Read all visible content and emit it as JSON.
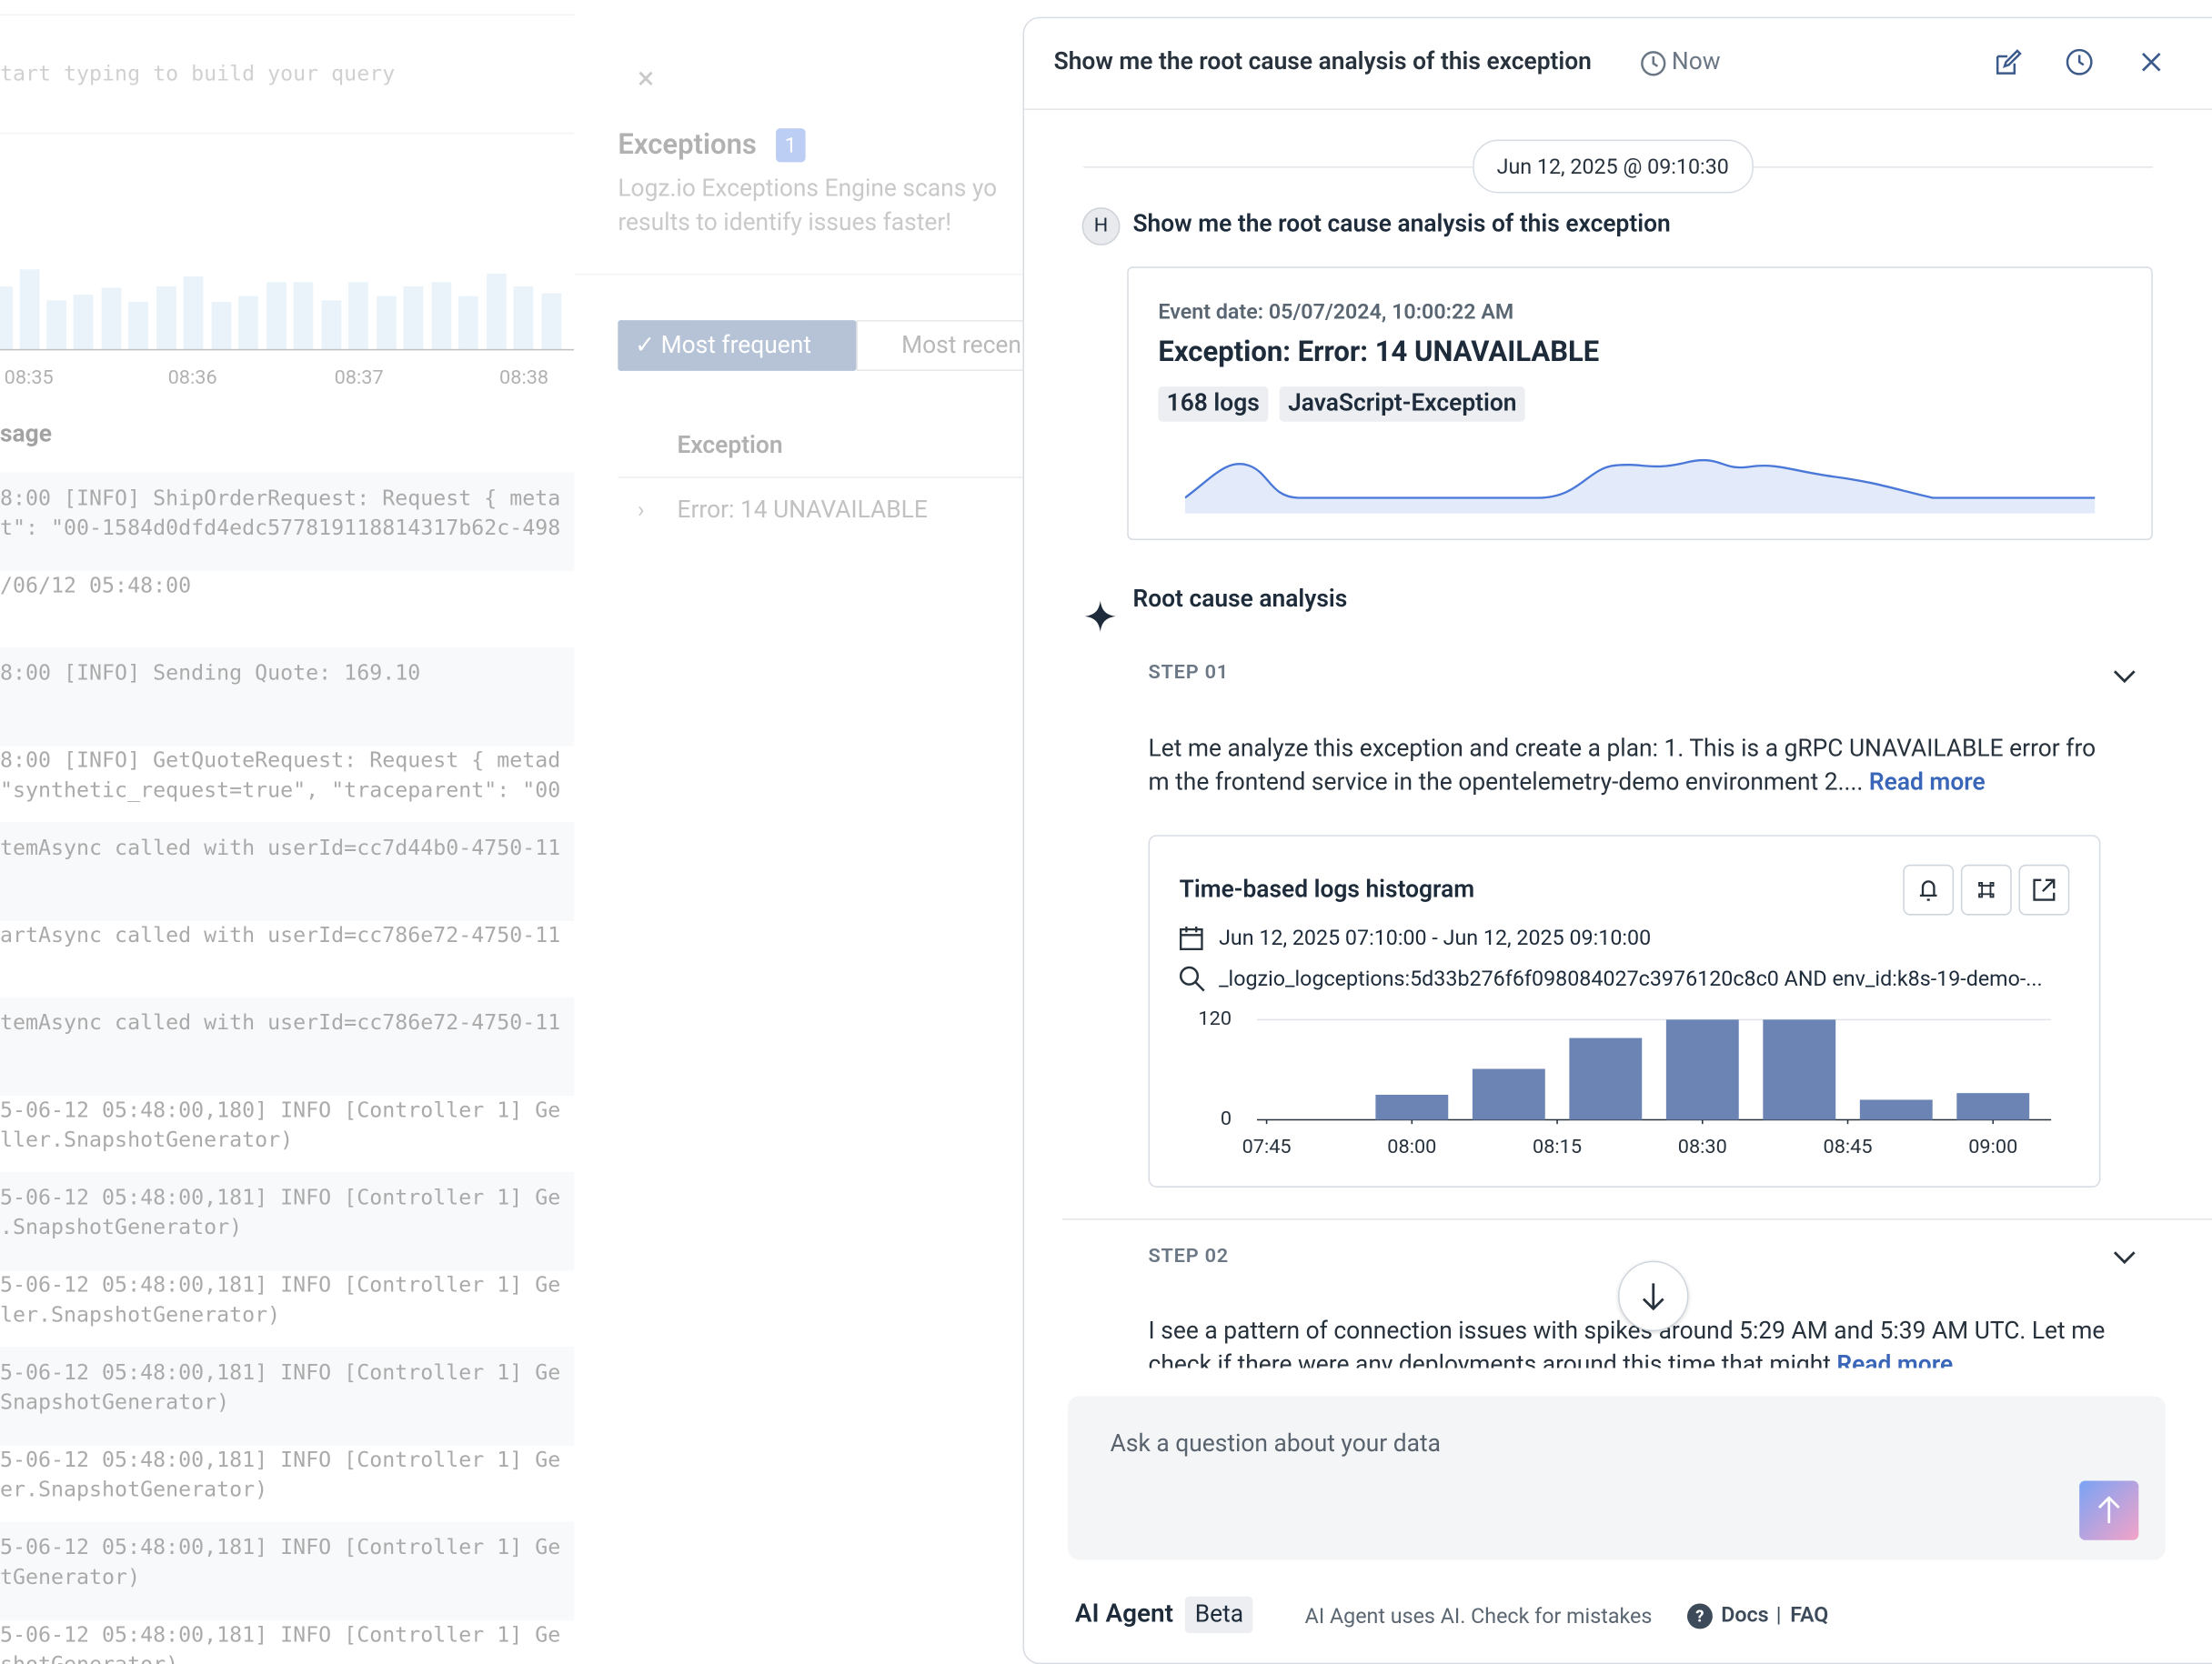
{
  "background": {
    "query_placeholder": "tart typing to build your query",
    "time_labels": [
      "08:35",
      "08:36",
      "08:37",
      "08:38"
    ],
    "message_header": "sage",
    "log_rows": [
      [
        "8:00 [INFO] ShipOrderRequest: Request { meta",
        "t\": \"00-1584d0dfd4edc577819118814317b62c-498"
      ],
      [
        "/06/12 05:48:00"
      ],
      [
        "8:00 [INFO] Sending Quote: 169.10"
      ],
      [
        "8:00 [INFO] GetQuoteRequest: Request { metad",
        "\"synthetic_request=true\", \"traceparent\": \"00"
      ],
      [
        "temAsync called with userId=cc7d44b0-4750-11"
      ],
      [
        "artAsync called with userId=cc786e72-4750-11"
      ],
      [
        "temAsync called with userId=cc786e72-4750-11"
      ],
      [
        "5-06-12 05:48:00,180] INFO [Controller 1] Ge",
        "ller.SnapshotGenerator)"
      ],
      [
        "5-06-12 05:48:00,181] INFO [Controller 1] Ge",
        ".SnapshotGenerator)"
      ],
      [
        "5-06-12 05:48:00,181] INFO [Controller 1] Ge",
        "ler.SnapshotGenerator)"
      ],
      [
        "5-06-12 05:48:00,181] INFO [Controller 1] Ge",
        "SnapshotGenerator)"
      ],
      [
        "5-06-12 05:48:00,181] INFO [Controller 1] Ge",
        "er.SnapshotGenerator)"
      ],
      [
        "5-06-12 05:48:00,181] INFO [Controller 1] Ge",
        "tGenerator)"
      ],
      [
        "5-06-12 05:48:00,181] INFO [Controller 1] Ge",
        "shotGenerator)"
      ]
    ]
  },
  "exceptions": {
    "title": "Exceptions",
    "count": "1",
    "description": "Logz.io Exceptions Engine scans yo results to identify issues faster!",
    "tabs": [
      "Most frequent",
      "Most recen"
    ],
    "column": "Exception",
    "row": "Error: 14 UNAVAILABLE"
  },
  "panel": {
    "title": "Show me the root cause analysis of this exception",
    "time": "Now",
    "date_chip": "Jun 12, 2025 @ 09:10:30",
    "user_initial": "H",
    "user_message": "Show me the root cause analysis of this exception",
    "event": {
      "date": "Event date: 05/07/2024, 10:00:22 AM",
      "title": "Exception: Error: 14 UNAVAILABLE",
      "tags": [
        "168 logs",
        "JavaScript-Exception"
      ]
    },
    "rca_title": "Root cause analysis",
    "steps": [
      {
        "label": "STEP 01",
        "text": "Let me analyze this exception and create a plan: 1. This is a gRPC UNAVAILABLE error from the frontend service in the opentelemetry-demo environment 2....",
        "read_more": "Read more"
      },
      {
        "label": "STEP 02",
        "text": "I see a pattern of connection issues with spikes around 5:29 AM and 5:39 AM UTC. Let me check if there were any deployments around this time that might",
        "read_more": "Read more"
      }
    ],
    "widget": {
      "title": "Time-based logs histogram",
      "time_range": "Jun 12, 2025 07:10:00 - Jun 12, 2025 09:10:00",
      "query": "_logzio_logceptions:5d33b276f6f098084027c3976120c8c0 AND env_id:k8s-19-demo-..."
    },
    "input_placeholder": "Ask a question about your data",
    "footer": {
      "agent": "AI Agent",
      "beta": "Beta",
      "disclaimer": "AI Agent uses AI. Check for mistakes",
      "docs": "Docs",
      "separator": "|",
      "faq": "FAQ"
    }
  },
  "chart_data": {
    "type": "bar",
    "x": [
      480,
      490,
      500,
      510,
      520,
      530,
      540
    ],
    "values": [
      30,
      61,
      98,
      120,
      120,
      24,
      32
    ],
    "color": "#6b84b4",
    "xlim": [
      464,
      546
    ],
    "xticks": [
      {
        "value": 465,
        "label": "07:45"
      },
      {
        "value": 480,
        "label": "08:00"
      },
      {
        "value": 495,
        "label": "08:15"
      },
      {
        "value": 510,
        "label": "08:30"
      },
      {
        "value": 525,
        "label": "08:45"
      },
      {
        "value": 540,
        "label": "09:00"
      }
    ],
    "ylim": [
      0,
      120
    ],
    "yticks": [
      0,
      120
    ],
    "grid": true
  }
}
